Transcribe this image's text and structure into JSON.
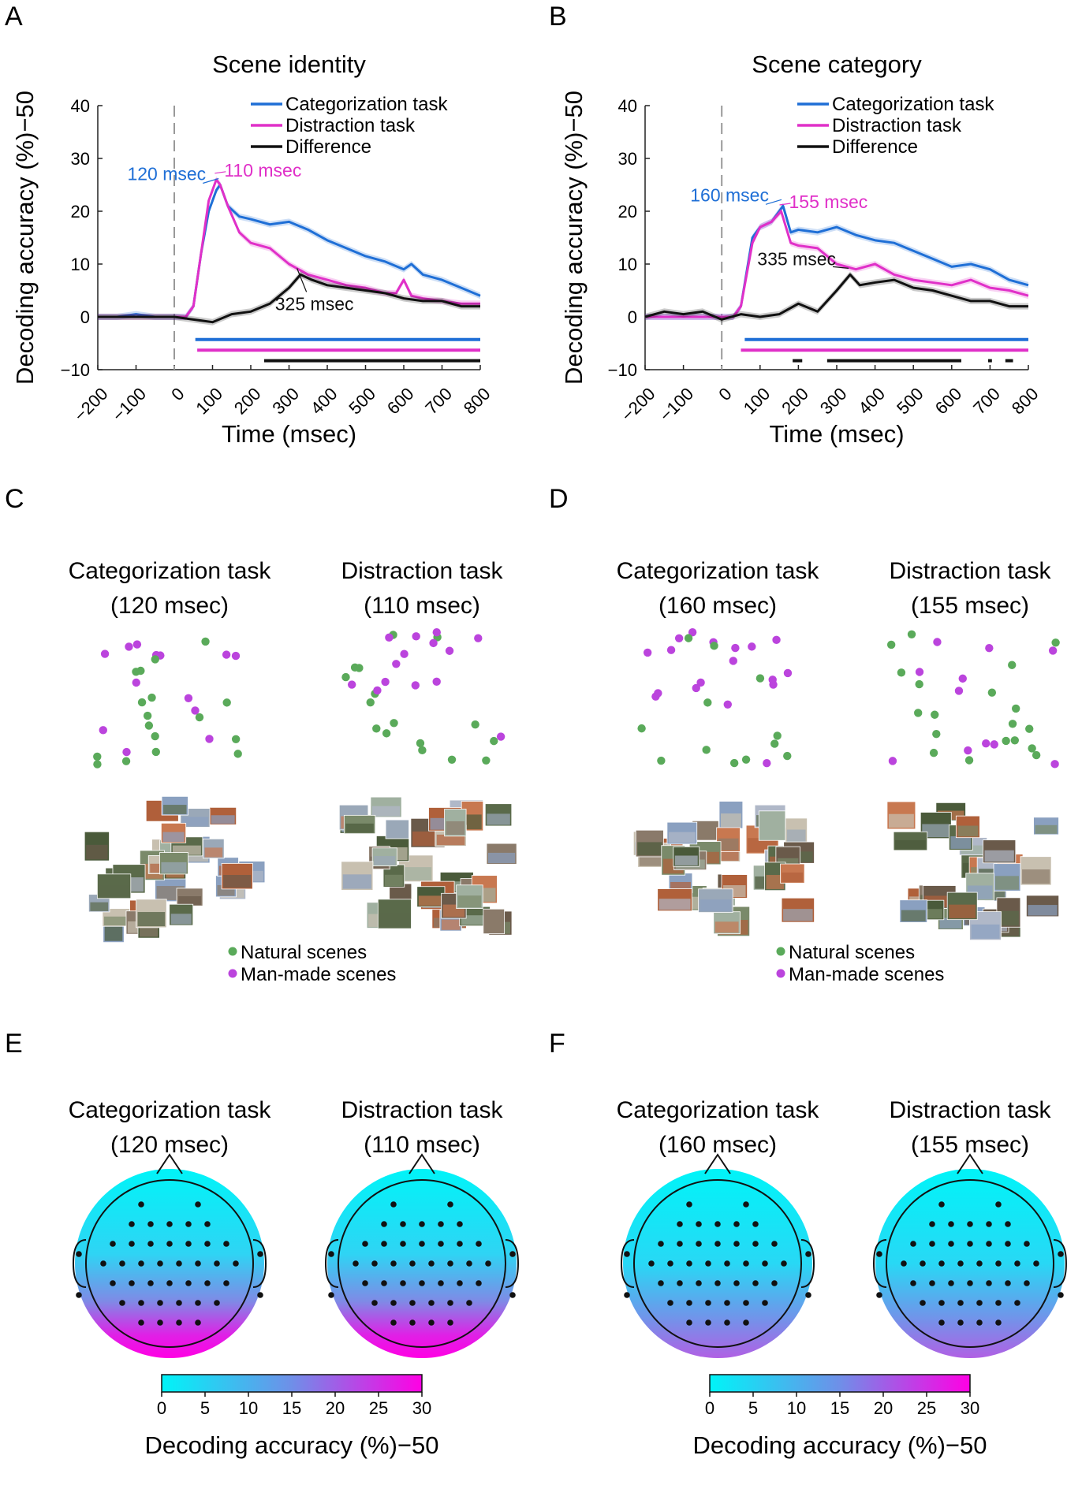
{
  "colors": {
    "categorization": "#1f6fd6",
    "distraction": "#e030c8",
    "difference": "#111111",
    "natural": "#5aaa5a",
    "manmade": "#bb44dd",
    "cmap_low": "#00f4f8",
    "cmap_mid": "#6f8fe8",
    "cmap_high": "#ff00e4"
  },
  "panels": {
    "A": "A",
    "B": "B",
    "C": "C",
    "D": "D",
    "E": "E",
    "F": "F"
  },
  "chart_data": [
    {
      "id": "A",
      "type": "line",
      "title": "Scene identity",
      "xlabel": "Time (msec)",
      "ylabel": "Decoding accuracy (%)−50",
      "xlim": [
        -200,
        800
      ],
      "ylim": [
        -10,
        40
      ],
      "xticks": [
        "−200",
        "−100",
        "0",
        "100",
        "200",
        "300",
        "400",
        "500",
        "600",
        "700",
        "800"
      ],
      "yticks": [
        "−10",
        "0",
        "10",
        "20",
        "30",
        "40"
      ],
      "legend_position": "top-right",
      "series": [
        {
          "name": "Categorization task",
          "color_key": "categorization",
          "x": [
            -200,
            -150,
            -100,
            -50,
            0,
            30,
            50,
            70,
            90,
            110,
            120,
            140,
            170,
            200,
            250,
            300,
            350,
            400,
            450,
            500,
            550,
            600,
            620,
            650,
            700,
            750,
            800
          ],
          "y": [
            0,
            0,
            0.5,
            0,
            0,
            0,
            2,
            12,
            20,
            24,
            25,
            21,
            19,
            18.5,
            17.5,
            18,
            16.5,
            14.5,
            13,
            11.5,
            10.5,
            9,
            10,
            8,
            7,
            5.5,
            4
          ]
        },
        {
          "name": "Distraction task",
          "color_key": "distraction",
          "x": [
            -200,
            -150,
            -100,
            -50,
            0,
            30,
            50,
            70,
            90,
            110,
            120,
            140,
            170,
            200,
            250,
            300,
            350,
            400,
            450,
            500,
            550,
            580,
            600,
            620,
            650,
            700,
            750,
            800
          ],
          "y": [
            0,
            0,
            0,
            0,
            0,
            0,
            2,
            12,
            22,
            26,
            25,
            21,
            16,
            14,
            13,
            10,
            8,
            7,
            6,
            5.5,
            4.5,
            4.5,
            7,
            4,
            3.5,
            3,
            2.5,
            2.5
          ]
        },
        {
          "name": "Difference",
          "color_key": "difference",
          "x": [
            -200,
            -150,
            -100,
            -50,
            0,
            50,
            100,
            150,
            200,
            250,
            300,
            330,
            360,
            400,
            450,
            500,
            550,
            600,
            650,
            700,
            750,
            800
          ],
          "y": [
            0,
            0,
            0,
            0,
            0,
            -0.5,
            -1,
            0.5,
            1,
            2.5,
            5.5,
            8,
            7,
            6,
            5.5,
            5,
            4.5,
            3.5,
            3,
            3,
            2,
            2
          ]
        }
      ],
      "significance_bars": [
        {
          "color_key": "categorization",
          "ranges": [
            [
              55,
              800
            ]
          ]
        },
        {
          "color_key": "distraction",
          "ranges": [
            [
              60,
              800
            ]
          ]
        },
        {
          "color_key": "difference",
          "ranges": [
            [
              235,
              800
            ]
          ]
        }
      ],
      "annotations": [
        {
          "text": "120 msec",
          "color_key": "categorization",
          "x": 120,
          "y": 25
        },
        {
          "text": "110 msec",
          "color_key": "distraction",
          "x": 110,
          "y": 26
        },
        {
          "text": "325 msec",
          "color_key": "difference",
          "x": 325,
          "y": 8
        }
      ]
    },
    {
      "id": "B",
      "type": "line",
      "title": "Scene category",
      "xlabel": "Time (msec)",
      "ylabel": "Decoding accuracy (%)−50",
      "xlim": [
        -200,
        800
      ],
      "ylim": [
        -10,
        40
      ],
      "xticks": [
        "−200",
        "−100",
        "0",
        "100",
        "200",
        "300",
        "400",
        "500",
        "600",
        "700",
        "800"
      ],
      "yticks": [
        "−10",
        "0",
        "10",
        "20",
        "30",
        "40"
      ],
      "legend_position": "top-right",
      "series": [
        {
          "name": "Categorization task",
          "color_key": "categorization",
          "x": [
            -200,
            -150,
            -100,
            -50,
            0,
            30,
            50,
            80,
            100,
            130,
            160,
            180,
            200,
            250,
            300,
            350,
            400,
            450,
            500,
            550,
            600,
            650,
            700,
            750,
            800
          ],
          "y": [
            0,
            0,
            0,
            0,
            0,
            0,
            2,
            15,
            17,
            18,
            21,
            16,
            16.5,
            16,
            17,
            15.5,
            14.5,
            14,
            12.5,
            11,
            9.5,
            10,
            9,
            7,
            6
          ]
        },
        {
          "name": "Distraction task",
          "color_key": "distraction",
          "x": [
            -200,
            -150,
            -100,
            -50,
            0,
            30,
            50,
            80,
            100,
            130,
            155,
            180,
            200,
            250,
            300,
            350,
            400,
            450,
            500,
            550,
            600,
            650,
            700,
            750,
            800
          ],
          "y": [
            0,
            0,
            0,
            0,
            0,
            0,
            2,
            14,
            17,
            18,
            20,
            14,
            13.5,
            13,
            10,
            9,
            10,
            8,
            7,
            6.5,
            6,
            7,
            5.5,
            5,
            4
          ]
        },
        {
          "name": "Difference",
          "color_key": "difference",
          "x": [
            -200,
            -150,
            -100,
            -50,
            0,
            50,
            100,
            150,
            200,
            250,
            300,
            335,
            360,
            400,
            450,
            500,
            550,
            600,
            650,
            700,
            750,
            800
          ],
          "y": [
            0,
            1,
            0.5,
            1,
            -0.5,
            0.5,
            0,
            0.5,
            2.5,
            1,
            5,
            8,
            6,
            6.5,
            7,
            5.5,
            5,
            4,
            3,
            3,
            2,
            2
          ]
        }
      ],
      "significance_bars": [
        {
          "color_key": "categorization",
          "ranges": [
            [
              60,
              800
            ]
          ]
        },
        {
          "color_key": "distraction",
          "ranges": [
            [
              50,
              800
            ]
          ]
        },
        {
          "color_key": "difference",
          "ranges": [
            [
              185,
              210
            ],
            [
              275,
              625
            ],
            [
              695,
              705
            ],
            [
              740,
              760
            ]
          ]
        }
      ],
      "annotations": [
        {
          "text": "160 msec",
          "color_key": "categorization",
          "x": 160,
          "y": 21
        },
        {
          "text": "155 msec",
          "color_key": "distraction",
          "x": 155,
          "y": 20
        },
        {
          "text": "335 msec",
          "color_key": "difference",
          "x": 335,
          "y": 8
        }
      ]
    },
    {
      "id": "C",
      "type": "scatter",
      "subplots": [
        {
          "title": "Categorization task",
          "subtitle": "(120 msec)"
        },
        {
          "title": "Distraction task",
          "subtitle": "(110 msec)"
        }
      ],
      "legend": [
        "Natural scenes",
        "Man-made scenes"
      ]
    },
    {
      "id": "D",
      "type": "scatter",
      "subplots": [
        {
          "title": "Categorization task",
          "subtitle": "(160 msec)"
        },
        {
          "title": "Distraction task",
          "subtitle": "(155 msec)"
        }
      ],
      "legend": [
        "Natural scenes",
        "Man-made scenes"
      ]
    },
    {
      "id": "E",
      "type": "heatmap",
      "subplots": [
        {
          "title": "Categorization task",
          "subtitle": "(120 msec)"
        },
        {
          "title": "Distraction task",
          "subtitle": "(110 msec)"
        }
      ],
      "colorbar": {
        "ticks": [
          "0",
          "5",
          "10",
          "15",
          "20",
          "25",
          "30"
        ],
        "label": "Decoding accuracy (%)−50",
        "range": [
          0,
          30
        ]
      }
    },
    {
      "id": "F",
      "type": "heatmap",
      "subplots": [
        {
          "title": "Categorization task",
          "subtitle": "(160 msec)"
        },
        {
          "title": "Distraction task",
          "subtitle": "(155 msec)"
        }
      ],
      "colorbar": {
        "ticks": [
          "0",
          "5",
          "10",
          "15",
          "20",
          "25",
          "30"
        ],
        "label": "Decoding accuracy (%)−50",
        "range": [
          0,
          30
        ]
      }
    }
  ]
}
